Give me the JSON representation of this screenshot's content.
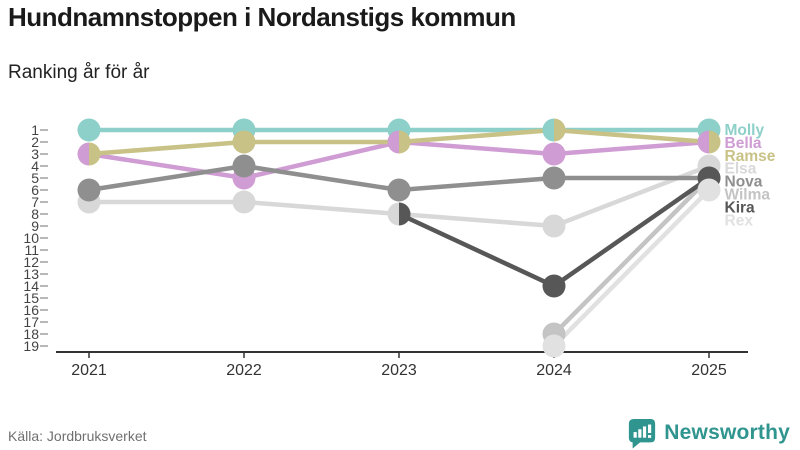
{
  "header": {
    "title": "Hundnamnstoppen i Nordanstigs kommun",
    "subtitle": "Ranking år för år"
  },
  "footer": {
    "source": "Källa: Jordbruksverket",
    "brand": "Newsworthy"
  },
  "colors": {
    "brand_teal": "#2f958e",
    "axis_line": "#333333",
    "axis_text": "#333333",
    "y_tick_text": "#444444",
    "title_text": "#1a1a1a",
    "source_text": "#707070"
  },
  "chart_data": {
    "type": "line",
    "subtype": "bump-ranking",
    "title": "Hundnamnstoppen i Nordanstigs kommun",
    "subtitle": "Ranking år för år",
    "x": [
      2021,
      2022,
      2023,
      2024,
      2025
    ],
    "x_tick_labels": [
      "2021",
      "2022",
      "2023",
      "2024",
      "2025"
    ],
    "y_ticks": [
      1,
      2,
      3,
      4,
      5,
      6,
      7,
      8,
      9,
      10,
      11,
      12,
      13,
      14,
      15,
      16,
      17,
      18,
      19
    ],
    "ylim": [
      1,
      19
    ],
    "y_inverted": true,
    "grid": false,
    "legend_position": "right-end-labels",
    "series": [
      {
        "name": "Molly",
        "color": "#8dcfc9",
        "values": [
          1,
          1,
          1,
          1,
          1
        ]
      },
      {
        "name": "Bella",
        "color": "#cf9cd3",
        "values": [
          3,
          5,
          2,
          3,
          2
        ]
      },
      {
        "name": "Ramse",
        "color": "#c8c287",
        "values": [
          3,
          2,
          2,
          1,
          2
        ]
      },
      {
        "name": "Elsa",
        "color": "#d8d8d8",
        "values": [
          7,
          7,
          8,
          9,
          4
        ]
      },
      {
        "name": "Nova",
        "color": "#8f8f8f",
        "values": [
          6,
          4,
          6,
          5,
          5
        ]
      },
      {
        "name": "Wilma",
        "color": "#c4c4c4",
        "values": [
          null,
          null,
          null,
          18,
          5
        ]
      },
      {
        "name": "Kira",
        "color": "#575757",
        "values": [
          null,
          null,
          8,
          14,
          5
        ]
      },
      {
        "name": "Rex",
        "color": "#e1e1e1",
        "values": [
          null,
          null,
          null,
          19,
          6
        ]
      }
    ]
  }
}
